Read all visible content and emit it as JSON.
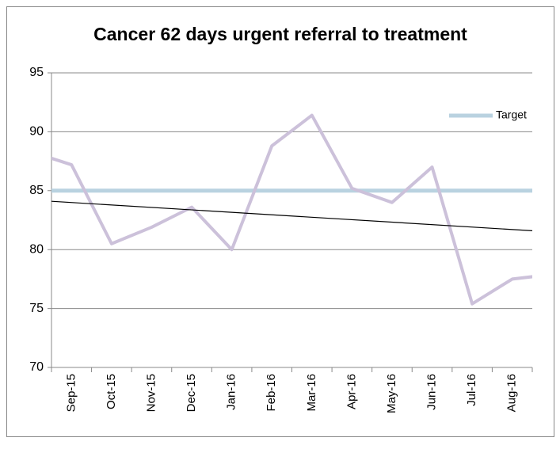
{
  "chart_data": {
    "type": "line",
    "title": "Cancer 62 days urgent referral to treatment",
    "categories": [
      null,
      "Sep-15",
      "Oct-15",
      "Nov-15",
      "Dec-15",
      "Jan-16",
      "Feb-16",
      "Mar-16",
      "Apr-16",
      "May-16",
      "Jun-16",
      "Jul-16",
      "Aug-16",
      null
    ],
    "series": [
      {
        "color": "#ccc1da",
        "values": [
          88.3,
          87.2,
          80.5,
          81.9,
          83.6,
          80.0,
          88.8,
          91.4,
          85.2,
          84.0,
          87.0,
          75.4,
          77.5,
          77.9
        ]
      },
      {
        "name": "Target",
        "color": "#b9d2e0",
        "values": [
          85,
          85,
          85,
          85,
          85,
          85,
          85,
          85,
          85,
          85,
          85,
          85,
          85,
          85
        ]
      }
    ],
    "trendline": {
      "color": "#000000",
      "values": [
        84.1,
        81.6
      ]
    },
    "ylim": [
      70,
      95
    ],
    "yticks": [
      70,
      75,
      80,
      85,
      90,
      95
    ],
    "grid": true,
    "legend": "top-right"
  }
}
